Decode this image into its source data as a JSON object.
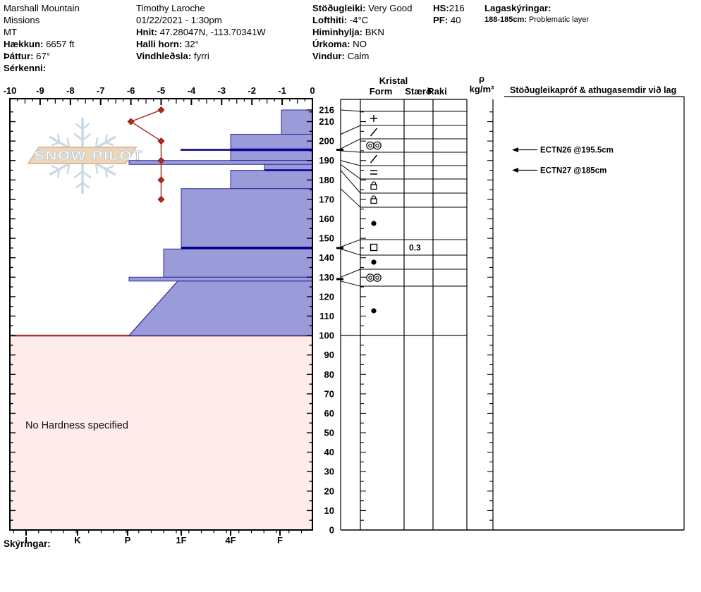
{
  "header": {
    "site_line1": "Marshall Mountain",
    "site_line2": "Missions",
    "site_line3": "MT",
    "elevation_label": "Hækkun:",
    "elevation_value": "6657 ft",
    "aspect_label": "Þáttur:",
    "aspect_value": "67°",
    "features_label": "Sérkenni:",
    "observer": "Timothy  Laroche",
    "datetime": "01/22/2021 - 1:30pm",
    "coords_label": "Hnit:",
    "coords_value": "47.28047N, -113.70341W",
    "slope_label": "Halli horn:",
    "slope_value": "32°",
    "windload_label": "Vindhleðsla:",
    "windload_value": "fyrri",
    "stability_label": "Stöðugleiki:",
    "stability_value": "Very Good",
    "airtemp_label": "Lofthiti:",
    "airtemp_value": "-4°C",
    "sky_label": "Himinhylja:",
    "sky_value": "BKN",
    "precip_label": "Úrkoma:",
    "precip_value": "NO",
    "wind_label": "Vindur:",
    "wind_value": "Calm",
    "hs_label": "HS:",
    "hs_value": "216",
    "pf_label": "PF:",
    "pf_value": "40",
    "layer_notes_label": "Lagaskýringar:",
    "layer_note_range": "188-185cm:",
    "layer_note_text": "Problematic layer"
  },
  "watermark_text": "SNOW PILOT",
  "footer_label": "Skýringar:",
  "panel": {
    "kristal_header": "Kristal",
    "form_header": "Form",
    "size_header": "Stærð",
    "wet_header": "Raki",
    "rho_header": "ρ",
    "rho_unit": "kg/m³",
    "notes_header": "Stöðugleikapróf & athugasemdir við lag"
  },
  "no_hardness_label": "No Hardness specified",
  "chart_data": {
    "type": "snow-profile",
    "temp_axis": {
      "min": -10,
      "max": 0,
      "unit": "°C",
      "labels": [
        "-10",
        "-9",
        "-8",
        "-7",
        "-6",
        "-5",
        "-4",
        "-3",
        "-2",
        "-1",
        "0"
      ]
    },
    "hardness_axis": {
      "labels": [
        "I",
        "K",
        "P",
        "1F",
        "4F",
        "F"
      ]
    },
    "depth_axis": {
      "unit": "cm",
      "surface": 216,
      "labels": [
        216,
        210,
        200,
        190,
        180,
        170,
        160,
        150,
        140,
        130,
        120,
        110,
        100,
        90,
        80,
        70,
        60,
        50,
        40,
        30,
        20,
        10,
        0
      ]
    },
    "temperature_profile": [
      {
        "depth_cm": 216,
        "temp_c": -5
      },
      {
        "depth_cm": 210,
        "temp_c": -6
      },
      {
        "depth_cm": 200,
        "temp_c": -5
      },
      {
        "depth_cm": 190,
        "temp_c": -5
      },
      {
        "depth_cm": 180,
        "temp_c": -5
      },
      {
        "depth_cm": 170,
        "temp_c": -5
      }
    ],
    "layers": [
      {
        "top_cm": 216,
        "bottom_cm": 203.5,
        "hardness": "F",
        "grain_symbol": "plus",
        "size_mm": ""
      },
      {
        "top_cm": 203.5,
        "bottom_cm": 196,
        "hardness": "4F",
        "grain_symbol": "slash",
        "size_mm": ""
      },
      {
        "top_cm": 196,
        "bottom_cm": 195,
        "hardness": "4F",
        "grain_symbol": "double-circle",
        "size_mm": ""
      },
      {
        "top_cm": 195,
        "bottom_cm": 190,
        "hardness": "4F",
        "grain_symbol": "slash",
        "size_mm": ""
      },
      {
        "top_cm": 190,
        "bottom_cm": 188,
        "hardness": "P",
        "grain_symbol": "equals",
        "size_mm": ""
      },
      {
        "top_cm": 188,
        "bottom_cm": 185,
        "hardness": "F+",
        "grain_symbol": "lock",
        "size_mm": ""
      },
      {
        "top_cm": 185,
        "bottom_cm": 175.5,
        "hardness": "4F",
        "grain_symbol": "lock",
        "size_mm": ""
      },
      {
        "top_cm": 175.5,
        "bottom_cm": 145.5,
        "hardness": "1F",
        "grain_symbol": "dot",
        "size_mm": ""
      },
      {
        "top_cm": 145.5,
        "bottom_cm": 144.5,
        "hardness": "1F",
        "grain_symbol": "square",
        "size_mm": "0.3"
      },
      {
        "top_cm": 144.5,
        "bottom_cm": 130,
        "hardness": "1F+",
        "grain_symbol": "dot",
        "size_mm": ""
      },
      {
        "top_cm": 130,
        "bottom_cm": 128,
        "hardness": "P",
        "grain_symbol": "double-circle",
        "size_mm": ""
      },
      {
        "top_cm": 128,
        "bottom_cm": 100,
        "hardness": "1F-",
        "hardness_bottom": "P",
        "grain_symbol": "dot",
        "size_mm": ""
      }
    ],
    "no_hardness_zone": {
      "top_cm": 100,
      "bottom_cm": 0
    },
    "tests": [
      {
        "label": "ECTN26 @195.5cm",
        "depth_cm": 195.5
      },
      {
        "label": "ECTN27 @185cm",
        "depth_cm": 185
      }
    ],
    "colors": {
      "bar_fill": "#9b9bda",
      "bar_border": "#2a2aa0",
      "navy_line": "#00008b",
      "temp_line": "#a8352a",
      "temp_dot": "#b22a18",
      "pink_fill": "#fdeceb",
      "pink_border": "#a23a28",
      "logo_fill": "#eed6ba",
      "logo_border": "#e0bd97",
      "flake": "#c9d9e5"
    }
  }
}
